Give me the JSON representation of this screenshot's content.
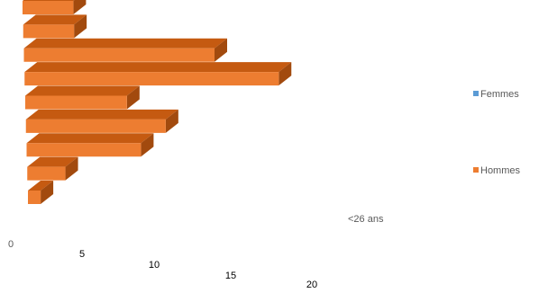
{
  "chart_data": {
    "type": "bar",
    "orientation": "horizontal",
    "three_d": true,
    "categories": [
      "<26 ans",
      "",
      "",
      "",
      "",
      "",
      "",
      "",
      ""
    ],
    "x_ticks": [
      "0",
      "5",
      "10",
      "15",
      "20"
    ],
    "xlim": [
      0,
      20
    ],
    "series": [
      {
        "name": "Femmes",
        "color": "#5B9BD5",
        "values": [
          0,
          0,
          0,
          0,
          0,
          0,
          0,
          0,
          0
        ]
      },
      {
        "name": "Hommes",
        "color": "#ED7D31",
        "values": [
          1,
          3,
          9,
          11,
          8,
          20,
          15,
          4,
          4
        ]
      }
    ],
    "legend": "right",
    "grid": false
  }
}
